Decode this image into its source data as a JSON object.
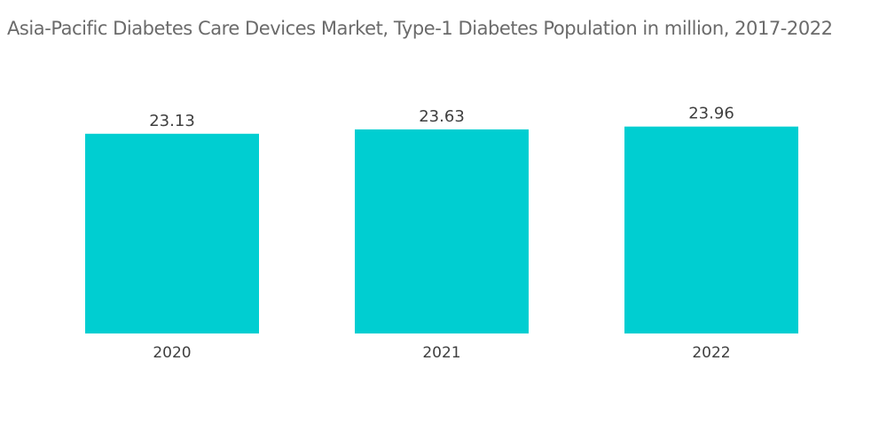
{
  "chart_data": {
    "type": "bar",
    "title": "Asia-Pacific Diabetes Care Devices Market, Type-1 Diabetes Population in million, 2017-2022",
    "categories": [
      "2020",
      "2021",
      "2022"
    ],
    "values": [
      23.13,
      23.63,
      23.96
    ],
    "value_labels": [
      "23.13",
      "23.63",
      "23.96"
    ],
    "xlabel": "",
    "ylabel": "",
    "ylim": [
      0,
      26.5
    ],
    "grid": false,
    "legend": "none",
    "bar_color": "#00ced1"
  }
}
